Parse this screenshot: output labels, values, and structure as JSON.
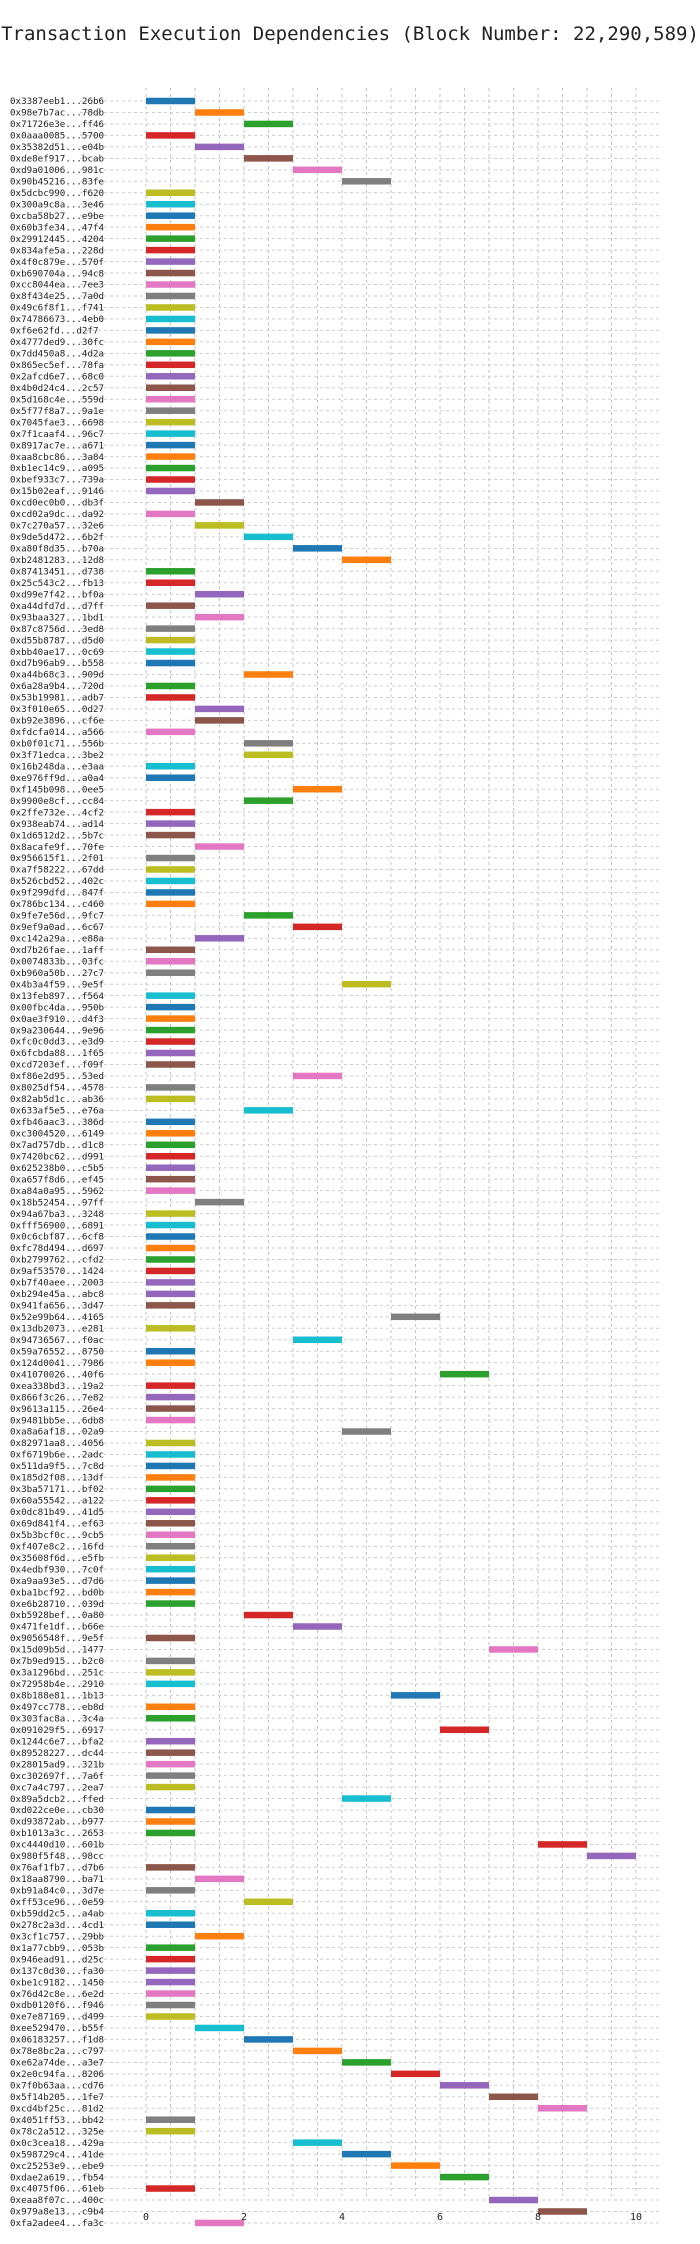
{
  "chart_data": {
    "type": "bar",
    "orientation": "horizontal",
    "title": "Transaction Execution Dependencies (Block Number: 22,290,589)",
    "xlabel": "",
    "ylabel": "",
    "xlim": [
      -0.5,
      10.5
    ],
    "xticks": [
      0,
      2,
      4,
      6,
      8,
      10
    ],
    "grid": true,
    "legend": "none",
    "colors": [
      "#1f77b4",
      "#ff7f0e",
      "#2ca02c",
      "#d62728",
      "#9467bd",
      "#8c564b",
      "#e377c2",
      "#7f7f7f",
      "#bcbd22",
      "#17becf"
    ],
    "transactions": [
      [
        "0x3387eeb1...26b6",
        0,
        0
      ],
      [
        "0x98e7b7ac...78db",
        1,
        1
      ],
      [
        "0x71726e3e...ff46",
        2,
        2
      ],
      [
        "0x0aaa0085...5700",
        0,
        3
      ],
      [
        "0x35382d51...e04b",
        1,
        4
      ],
      [
        "0xde8ef917...bcab",
        2,
        5
      ],
      [
        "0xd9a01006...981c",
        3,
        6
      ],
      [
        "0x90b45216...83fe",
        4,
        7
      ],
      [
        "0x5dcbc990...f620",
        0,
        8
      ],
      [
        "0x300a9c8a...3e46",
        0,
        9
      ],
      [
        "0xcba58b27...e9be",
        0,
        0
      ],
      [
        "0x60b3fe34...47f4",
        0,
        1
      ],
      [
        "0x29912445...4204",
        0,
        2
      ],
      [
        "0x834afe5a...228d",
        0,
        3
      ],
      [
        "0x4f0c879e...570f",
        0,
        4
      ],
      [
        "0xb690704a...94c8",
        0,
        5
      ],
      [
        "0xcc8044ea...7ee3",
        0,
        6
      ],
      [
        "0x8f434e25...7a0d",
        0,
        7
      ],
      [
        "0x49c6f8f1...f741",
        0,
        8
      ],
      [
        "0x74786673...4eb0",
        0,
        9
      ],
      [
        "0xf6e62fd...d2f7",
        0,
        0
      ],
      [
        "0x4777ded9...30fc",
        0,
        1
      ],
      [
        "0x7dd450a8...4d2a",
        0,
        2
      ],
      [
        "0x865ec5ef...78fa",
        0,
        3
      ],
      [
        "0x2afcd6e7...68c0",
        0,
        4
      ],
      [
        "0x4b0d24c4...2c57",
        0,
        5
      ],
      [
        "0x5d168c4e...559d",
        0,
        6
      ],
      [
        "0x5f77f8a7...9a1e",
        0,
        7
      ],
      [
        "0x7045fae3...6698",
        0,
        8
      ],
      [
        "0x7f1caaf4...96c7",
        0,
        9
      ],
      [
        "0x8917ac7e...a671",
        0,
        0
      ],
      [
        "0xaa8cbc86...3a84",
        0,
        1
      ],
      [
        "0xb1ec14c9...a095",
        0,
        2
      ],
      [
        "0xbef933c7...739a",
        0,
        3
      ],
      [
        "0x15b02eaf...9146",
        0,
        4
      ],
      [
        "0xcd0ec0b0...db3f",
        1,
        5
      ],
      [
        "0xcd02a9dc...da92",
        0,
        6
      ],
      [
        "0x7c270a57...32e6",
        1,
        8
      ],
      [
        "0x9de5d472...6b2f",
        2,
        9
      ],
      [
        "0xa80f8d35...b70a",
        3,
        0
      ],
      [
        "0xb2481283...12d8",
        4,
        1
      ],
      [
        "0x87413451...d738",
        0,
        2
      ],
      [
        "0x25c543c2...fb13",
        0,
        3
      ],
      [
        "0xd99e7f42...bf0a",
        1,
        4
      ],
      [
        "0xa44dfd7d...d7ff",
        0,
        5
      ],
      [
        "0x93baa327...1bd1",
        1,
        6
      ],
      [
        "0x87c8756d...3ed8",
        0,
        7
      ],
      [
        "0xd55b8787...d5d0",
        0,
        8
      ],
      [
        "0xbb40ae17...0c69",
        0,
        9
      ],
      [
        "0xd7b96ab9...b558",
        0,
        0
      ],
      [
        "0xa44b68c3...909d",
        2,
        1
      ],
      [
        "0x6a28a9b4...720d",
        0,
        2
      ],
      [
        "0x53b19981...adb7",
        0,
        3
      ],
      [
        "0x3f010e65...0d27",
        1,
        4
      ],
      [
        "0xb92e3896...cf6e",
        1,
        5
      ],
      [
        "0xfdcfa014...a566",
        0,
        6
      ],
      [
        "0xb0f01c71...556b",
        2,
        7
      ],
      [
        "0x3f71edca...3be2",
        2,
        8
      ],
      [
        "0x16b248da...e3aa",
        0,
        9
      ],
      [
        "0xe976ff9d...a0a4",
        0,
        0
      ],
      [
        "0xf145b098...0ee5",
        3,
        1
      ],
      [
        "0x9900e8cf...cc84",
        2,
        2
      ],
      [
        "0x2ffe732e...4cf2",
        0,
        3
      ],
      [
        "0x938eab74...ad14",
        0,
        4
      ],
      [
        "0x1d6512d2...5b7c",
        0,
        5
      ],
      [
        "0x8acafe9f...70fe",
        1,
        6
      ],
      [
        "0x956615f1...2f01",
        0,
        7
      ],
      [
        "0xa7f58222...67dd",
        0,
        8
      ],
      [
        "0x526cbd52...402c",
        0,
        9
      ],
      [
        "0x9f299dfd...847f",
        0,
        0
      ],
      [
        "0x786bc134...c460",
        0,
        1
      ],
      [
        "0x9fe7e56d...9fc7",
        2,
        2
      ],
      [
        "0x9ef9a0ad...6c67",
        3,
        3
      ],
      [
        "0xc142a29a...e88a",
        1,
        4
      ],
      [
        "0xd7b26fae...1aff",
        0,
        5
      ],
      [
        "0x0074833b...03fc",
        0,
        6
      ],
      [
        "0xb960a50b...27c7",
        0,
        7
      ],
      [
        "0x4b3a4f59...9e5f",
        4,
        8
      ],
      [
        "0x13feb897...f564",
        0,
        9
      ],
      [
        "0x00fbc4da...950b",
        0,
        0
      ],
      [
        "0x0ae3f910...d4f3",
        0,
        1
      ],
      [
        "0x9a230644...9e96",
        0,
        2
      ],
      [
        "0xfc0c0dd3...e3d9",
        0,
        3
      ],
      [
        "0x6fcbda88...1f65",
        0,
        4
      ],
      [
        "0xcd7203ef...f09f",
        0,
        5
      ],
      [
        "0xf86e2d95...53ed",
        3,
        6
      ],
      [
        "0x8025df54...4578",
        0,
        7
      ],
      [
        "0x82ab5d1c...ab36",
        0,
        8
      ],
      [
        "0x633af5e5...e76a",
        2,
        9
      ],
      [
        "0xfb46aac3...386d",
        0,
        0
      ],
      [
        "0xc3004520...6149",
        0,
        1
      ],
      [
        "0x7ad757db...d1c8",
        0,
        2
      ],
      [
        "0x7420bc62...d991",
        0,
        3
      ],
      [
        "0x625238b0...c5b5",
        0,
        4
      ],
      [
        "0xa657f8d6...ef45",
        0,
        5
      ],
      [
        "0xa84a0a95...5962",
        0,
        6
      ],
      [
        "0x18b52454...97ff",
        1,
        7
      ],
      [
        "0x94a67ba3...3248",
        0,
        8
      ],
      [
        "0xfff56900...6891",
        0,
        9
      ],
      [
        "0x0c6cbf87...6cf8",
        0,
        0
      ],
      [
        "0xfc78d494...d697",
        0,
        1
      ],
      [
        "0xb2799762...cfd2",
        0,
        2
      ],
      [
        "0x9af53570...1424",
        0,
        3
      ],
      [
        "0xb7f40aee...2003",
        0,
        4
      ],
      [
        "0xb294e45a...abc8",
        0,
        4
      ],
      [
        "0x941fa656...3d47",
        0,
        5
      ],
      [
        "0x52e99b64...4165",
        5,
        7
      ],
      [
        "0x13db2073...e281",
        0,
        8
      ],
      [
        "0x94736567...f0ac",
        3,
        9
      ],
      [
        "0x59a76552...8750",
        0,
        0
      ],
      [
        "0x124d0041...7986",
        0,
        1
      ],
      [
        "0x41070026...40f6",
        6,
        2
      ],
      [
        "0xea338bd3...19a2",
        0,
        3
      ],
      [
        "0x866f3c26...7e82",
        0,
        4
      ],
      [
        "0x9613a115...26e4",
        0,
        5
      ],
      [
        "0x9481bb5e...6db8",
        0,
        6
      ],
      [
        "0xa8a6af18...02a9",
        4,
        7
      ],
      [
        "0x82971aa8...4056",
        0,
        8
      ],
      [
        "0xf6719b6e...2adc",
        0,
        9
      ],
      [
        "0x511da9f5...7c8d",
        0,
        0
      ],
      [
        "0x185d2f08...13df",
        0,
        1
      ],
      [
        "0x3ba57171...bf02",
        0,
        2
      ],
      [
        "0x60a55542...a122",
        0,
        3
      ],
      [
        "0x0dc81b49...41d5",
        0,
        4
      ],
      [
        "0x69d841f4...ef63",
        0,
        5
      ],
      [
        "0x5b3bcf0c...9cb5",
        0,
        6
      ],
      [
        "0xf407e8c2...16fd",
        0,
        7
      ],
      [
        "0x35608f6d...e5fb",
        0,
        8
      ],
      [
        "0x4edbf930...7c0f",
        0,
        9
      ],
      [
        "0xa9aa93e5...d7d6",
        0,
        0
      ],
      [
        "0xba1bcf92...bd0b",
        0,
        1
      ],
      [
        "0xe6b28710...039d",
        0,
        2
      ],
      [
        "0xb5928bef...0a80",
        2,
        3
      ],
      [
        "0x471fe1df...b66e",
        3,
        4
      ],
      [
        "0x9056548f...9e5f",
        0,
        5
      ],
      [
        "0x15d09b5d...1477",
        7,
        6
      ],
      [
        "0x7b9ed915...b2c0",
        0,
        7
      ],
      [
        "0x3a1296bd...251c",
        0,
        8
      ],
      [
        "0x72958b4e...2910",
        0,
        9
      ],
      [
        "0x8b188e81...1b13",
        5,
        0
      ],
      [
        "0x497cc778...eb8d",
        0,
        1
      ],
      [
        "0x303fac8a...3c4a",
        0,
        2
      ],
      [
        "0x091029f5...6917",
        6,
        3
      ],
      [
        "0x1244c6e7...bfa2",
        0,
        4
      ],
      [
        "0x89528227...dc44",
        0,
        5
      ],
      [
        "0x28015ad9...321b",
        0,
        6
      ],
      [
        "0xc302697f...7a6f",
        0,
        7
      ],
      [
        "0xc7a4c797...2ea7",
        0,
        8
      ],
      [
        "0x89a5dcb2...ffed",
        4,
        9
      ],
      [
        "0xd022ce0e...cb30",
        0,
        0
      ],
      [
        "0xd93872ab...b977",
        0,
        1
      ],
      [
        "0xb1013a3c...2653",
        0,
        2
      ],
      [
        "0xc4440d10...601b",
        8,
        3
      ],
      [
        "0x980f5f48...98cc",
        9,
        4
      ],
      [
        "0x76af1fb7...d7b6",
        0,
        5
      ],
      [
        "0x18aa8790...ba71",
        1,
        6
      ],
      [
        "0xb91a84c0...3d7e",
        0,
        7
      ],
      [
        "0xff53ce96...0e59",
        2,
        8
      ],
      [
        "0xb59dd2c5...a4ab",
        0,
        9
      ],
      [
        "0x278c2a3d...4cd1",
        0,
        0
      ],
      [
        "0x3cf1c757...29bb",
        1,
        1
      ],
      [
        "0x1a77cbb9...053b",
        0,
        2
      ],
      [
        "0x946ead91...d25c",
        0,
        3
      ],
      [
        "0x137c0d30...fa30",
        0,
        4
      ],
      [
        "0xbe1c9182...1450",
        0,
        4
      ],
      [
        "0x76d42c8e...6e2d",
        0,
        6
      ],
      [
        "0xdb0120f6...f946",
        0,
        7
      ],
      [
        "0xe7e87169...d499",
        0,
        8
      ],
      [
        "0xee529470...b55f",
        1,
        9
      ],
      [
        "0x06183257...f1d8",
        2,
        0
      ],
      [
        "0x78e8bc2a...c797",
        3,
        1
      ],
      [
        "0xe62a74de...a3e7",
        4,
        2
      ],
      [
        "0x2e0c94fa...8206",
        5,
        3
      ],
      [
        "0x7f0b63aa...cd76",
        6,
        4
      ],
      [
        "0x5f14b205...1fe7",
        7,
        5
      ],
      [
        "0xcd4bf25c...81d2",
        8,
        6
      ],
      [
        "0x4051ff53...bb42",
        0,
        7
      ],
      [
        "0x78c2a512...325e",
        0,
        8
      ],
      [
        "0x0c3cea18...429a",
        3,
        9
      ],
      [
        "0x598729c4...41de",
        4,
        0
      ],
      [
        "0xc25253e9...ebe9",
        5,
        1
      ],
      [
        "0xdae2a619...fb54",
        6,
        2
      ],
      [
        "0xc4075f06...61eb",
        0,
        3
      ],
      [
        "0xeaa8f07c...400c",
        7,
        4
      ],
      [
        "0x979a8e13...c9b4",
        8,
        5
      ],
      [
        "0xfa2adee4...fa3c",
        1,
        6
      ]
    ]
  },
  "labels": {
    "title": "Transaction Execution Dependencies (Block Number: 22,290,589)",
    "ticks": [
      "0",
      "2",
      "4",
      "6",
      "8",
      "10"
    ]
  }
}
